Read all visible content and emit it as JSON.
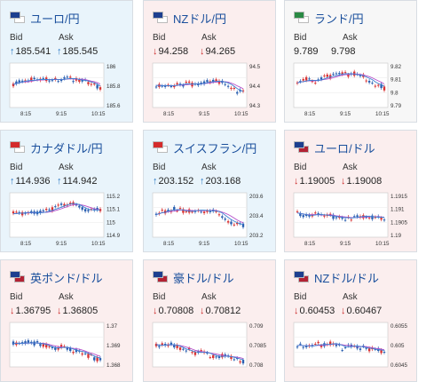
{
  "cards": [
    {
      "pair": "ユーロ/円",
      "dir": "up",
      "flags": [
        "#1d3f8f",
        "#ffffff"
      ],
      "bid_label": "Bid",
      "ask_label": "Ask",
      "bid": "185.541",
      "ask": "185.545",
      "yticks": [
        "186",
        "185.8",
        "185.6"
      ],
      "xticks": [
        "8:15",
        "9:15",
        "10:15"
      ]
    },
    {
      "pair": "NZドル/円",
      "dir": "down",
      "flags": [
        "#1d3f8f",
        "#ffffff"
      ],
      "bid_label": "Bid",
      "ask_label": "Ask",
      "bid": "94.258",
      "ask": "94.265",
      "yticks": [
        "94.5",
        "94.4",
        "94.3"
      ],
      "xticks": [
        "8:15",
        "9:15",
        "10:15"
      ]
    },
    {
      "pair": "ランド/円",
      "dir": "flat",
      "flags": [
        "#2a8a44",
        "#ffffff"
      ],
      "bid_label": "Bid",
      "ask_label": "Ask",
      "bid": "9.789",
      "ask": "9.798",
      "yticks": [
        "9.82",
        "9.81",
        "9.8",
        "9.79"
      ],
      "xticks": [
        "8:15",
        "9:15",
        "10:15"
      ]
    },
    {
      "pair": "カナダドル/円",
      "dir": "up",
      "flags": [
        "#d42b2b",
        "#ffffff"
      ],
      "bid_label": "Bid",
      "ask_label": "Ask",
      "bid": "114.936",
      "ask": "114.942",
      "yticks": [
        "115.2",
        "115.1",
        "115",
        "114.9"
      ],
      "xticks": [
        "8:15",
        "9:15",
        "10:15"
      ]
    },
    {
      "pair": "スイスフラン/円",
      "dir": "up",
      "flags": [
        "#d42b2b",
        "#ffffff"
      ],
      "bid_label": "Bid",
      "ask_label": "Ask",
      "bid": "203.152",
      "ask": "203.168",
      "yticks": [
        "203.6",
        "203.4",
        "203.2"
      ],
      "xticks": [
        "8:15",
        "9:15",
        "10:15"
      ]
    },
    {
      "pair": "ユーロ/ドル",
      "dir": "down",
      "flags": [
        "#1d3f8f",
        "#b22234"
      ],
      "bid_label": "Bid",
      "ask_label": "Ask",
      "bid": "1.19005",
      "ask": "1.19008",
      "yticks": [
        "1.1915",
        "1.191",
        "1.1905",
        "1.19"
      ],
      "xticks": [
        "8:15",
        "9:15",
        "10:15"
      ]
    },
    {
      "pair": "英ポンド/ドル",
      "dir": "down",
      "flags": [
        "#1d3f8f",
        "#b22234"
      ],
      "bid_label": "Bid",
      "ask_label": "Ask",
      "bid": "1.36795",
      "ask": "1.36805",
      "yticks": [
        "1.37",
        "1.369",
        "1.368"
      ],
      "xticks": []
    },
    {
      "pair": "豪ドル/ドル",
      "dir": "down",
      "flags": [
        "#1d3f8f",
        "#b22234"
      ],
      "bid_label": "Bid",
      "ask_label": "Ask",
      "bid": "0.70808",
      "ask": "0.70812",
      "yticks": [
        "0.709",
        "0.7085",
        "0.708"
      ],
      "xticks": []
    },
    {
      "pair": "NZドル/ドル",
      "dir": "down",
      "flags": [
        "#1d3f8f",
        "#b22234"
      ],
      "bid_label": "Bid",
      "ask_label": "Ask",
      "bid": "0.60453",
      "ask": "0.60467",
      "yticks": [
        "0.6055",
        "0.605",
        "0.6045"
      ],
      "xticks": []
    }
  ],
  "colors": {
    "up_arrow": "#2a79c4",
    "down_arrow": "#cc2a2a",
    "candle_up": "#d93535",
    "candle_down": "#2a5fb0",
    "ma": "#b54ec9",
    "axis_text": "#333333"
  }
}
